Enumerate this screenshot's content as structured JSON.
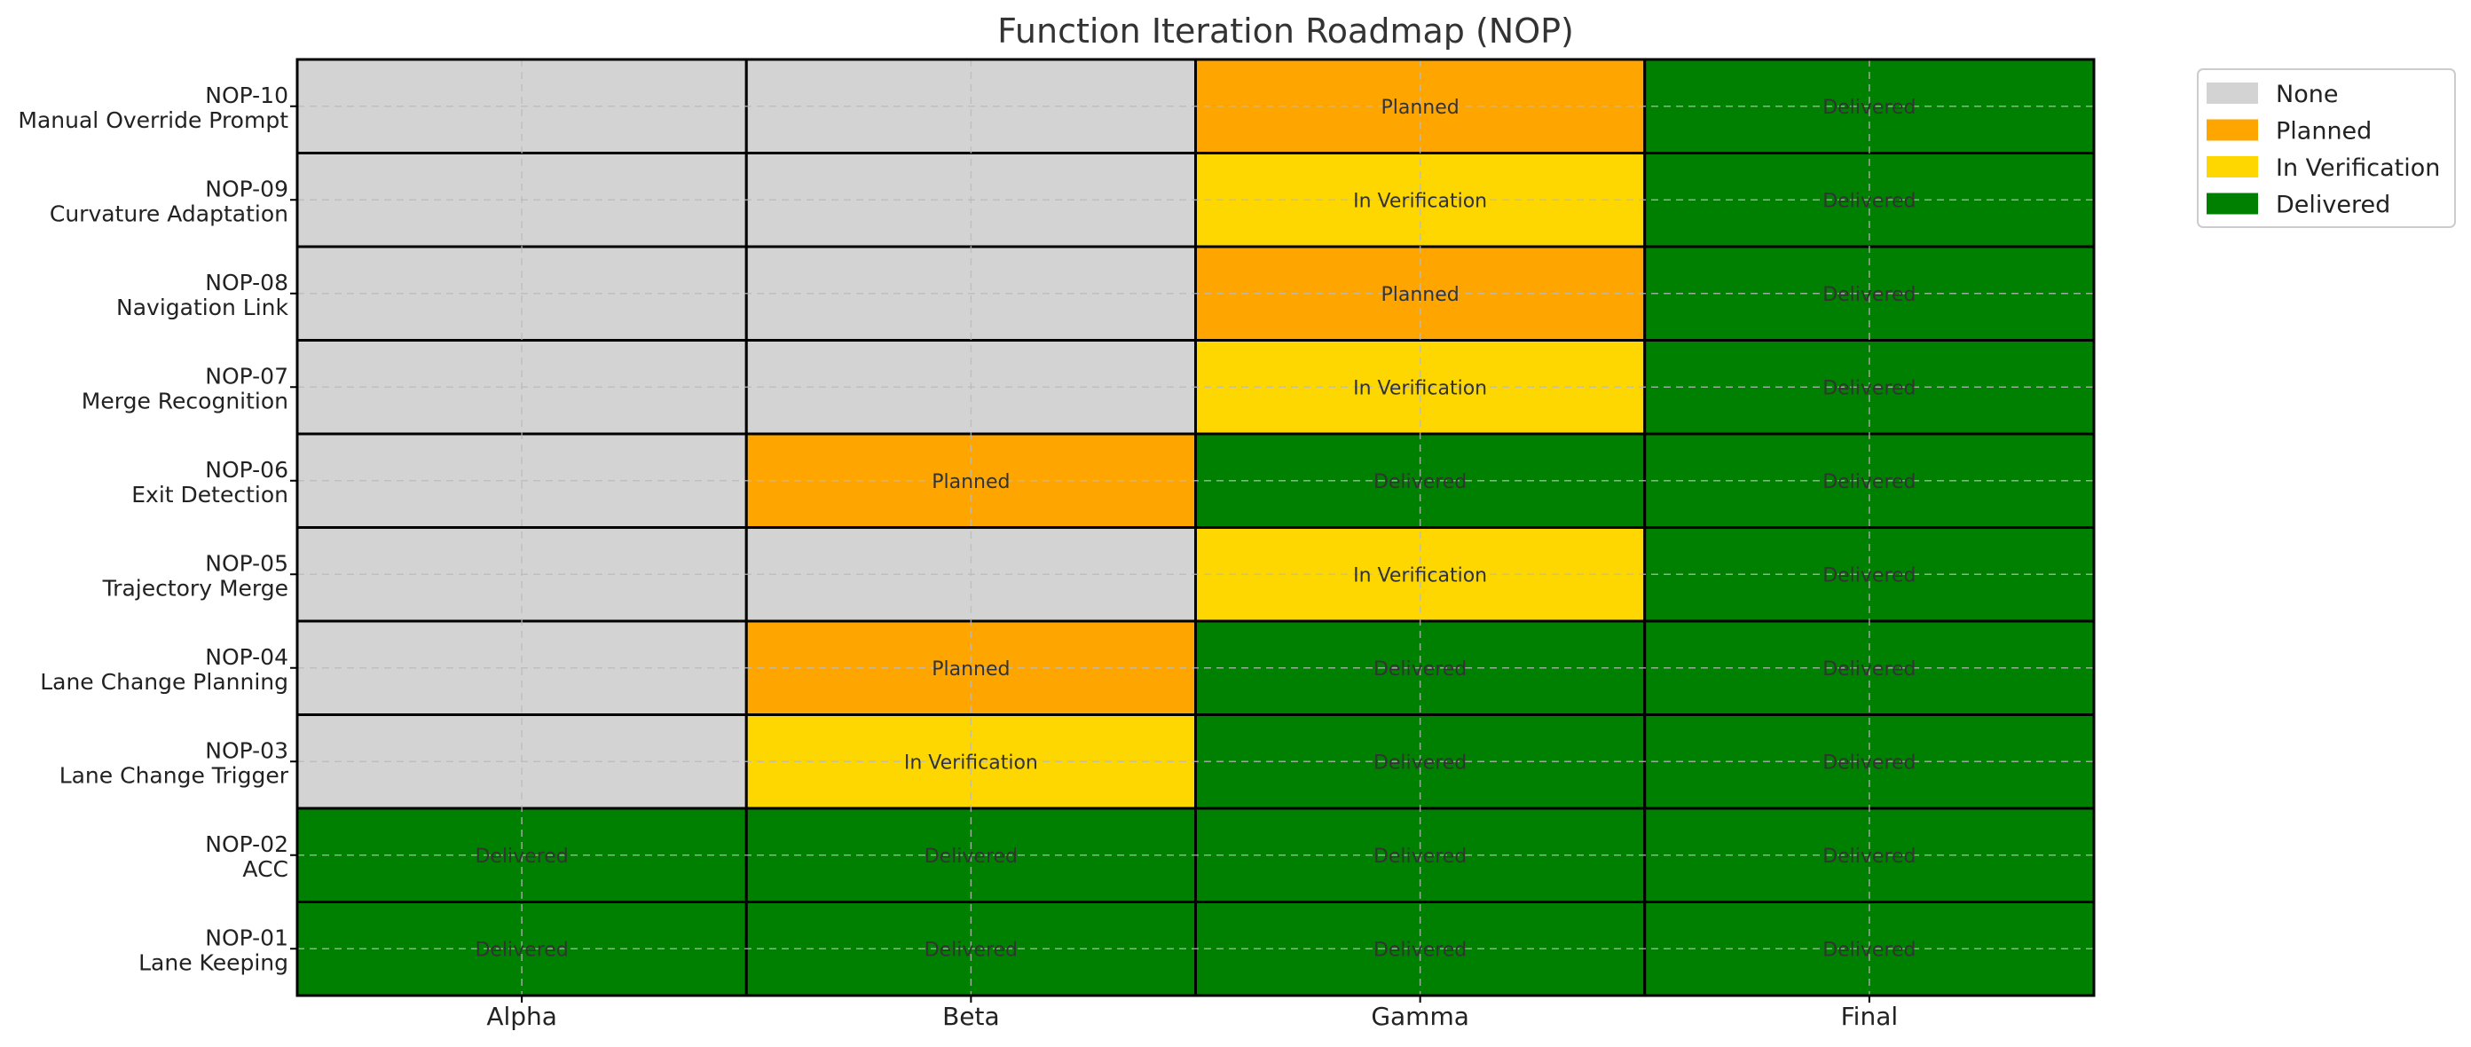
{
  "chart_data": {
    "type": "heatmap",
    "title": "Function Iteration Roadmap (NOP)",
    "xlabel": "",
    "ylabel": "",
    "columns": [
      "Alpha",
      "Beta",
      "Gamma",
      "Final"
    ],
    "rows": [
      {
        "id": "NOP-01",
        "name": "Lane Keeping",
        "states": [
          "Delivered",
          "Delivered",
          "Delivered",
          "Delivered"
        ]
      },
      {
        "id": "NOP-02",
        "name": "ACC",
        "states": [
          "Delivered",
          "Delivered",
          "Delivered",
          "Delivered"
        ]
      },
      {
        "id": "NOP-03",
        "name": "Lane Change Trigger",
        "states": [
          "None",
          "In Verification",
          "Delivered",
          "Delivered"
        ]
      },
      {
        "id": "NOP-04",
        "name": "Lane Change Planning",
        "states": [
          "None",
          "Planned",
          "Delivered",
          "Delivered"
        ]
      },
      {
        "id": "NOP-05",
        "name": "Trajectory Merge",
        "states": [
          "None",
          "None",
          "In Verification",
          "Delivered"
        ]
      },
      {
        "id": "NOP-06",
        "name": "Exit Detection",
        "states": [
          "None",
          "Planned",
          "Delivered",
          "Delivered"
        ]
      },
      {
        "id": "NOP-07",
        "name": "Merge Recognition",
        "states": [
          "None",
          "None",
          "In Verification",
          "Delivered"
        ]
      },
      {
        "id": "NOP-08",
        "name": "Navigation Link",
        "states": [
          "None",
          "None",
          "Planned",
          "Delivered"
        ]
      },
      {
        "id": "NOP-09",
        "name": "Curvature Adaptation",
        "states": [
          "None",
          "None",
          "In Verification",
          "Delivered"
        ]
      },
      {
        "id": "NOP-10",
        "name": "Manual Override Prompt",
        "states": [
          "None",
          "None",
          "Planned",
          "Delivered"
        ]
      }
    ],
    "legend": {
      "placement": "top-right-outside",
      "entries": [
        {
          "label": "None",
          "color": "#d3d3d3"
        },
        {
          "label": "Planned",
          "color": "#ffa500"
        },
        {
          "label": "In Verification",
          "color": "#ffd700"
        },
        {
          "label": "Delivered",
          "color": "#008000"
        }
      ]
    },
    "grid": true,
    "row_order": "bottom-to-top"
  }
}
